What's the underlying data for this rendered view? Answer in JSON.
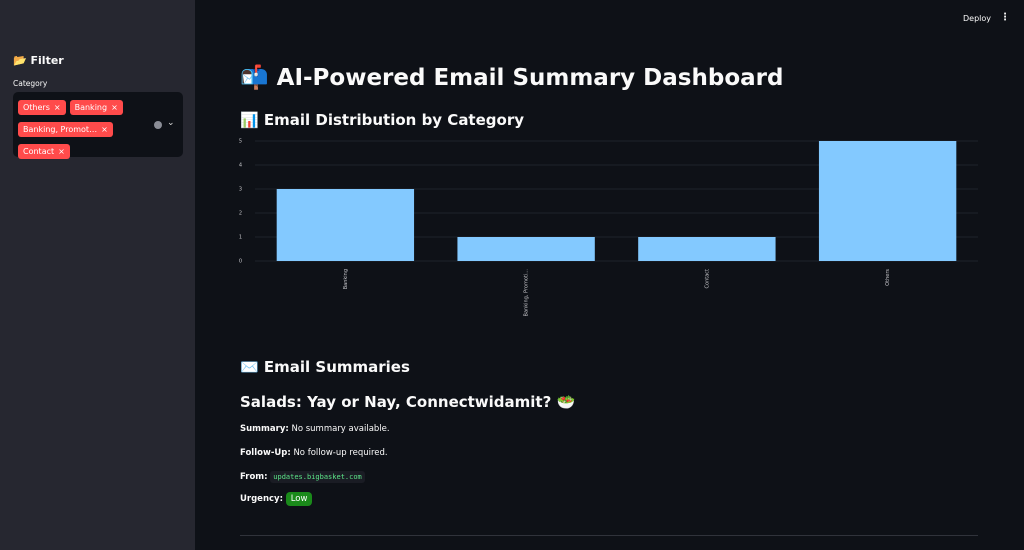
{
  "header": {
    "deploy": "Deploy"
  },
  "sidebar": {
    "title": "📂 Filter",
    "filter_label": "Category",
    "chips": [
      "Others",
      "Banking",
      "Banking, Promot…",
      "Contact"
    ]
  },
  "main": {
    "title": "📬 AI-Powered Email Summary Dashboard",
    "chart_heading": "📊 Email Distribution by Category",
    "summaries_heading": "✉️ Email Summaries"
  },
  "chart_data": {
    "type": "bar",
    "categories": [
      "Banking",
      "Banking, Promoti...",
      "Contact",
      "Others"
    ],
    "values": [
      3,
      1,
      1,
      5
    ],
    "color": "#83c9ff",
    "ylim": [
      0,
      5
    ],
    "yticks": [
      0,
      1,
      2,
      3,
      4,
      5
    ],
    "grid": true
  },
  "email": {
    "subject": "Salads: Yay or Nay, Connectwidamit? 🥗",
    "summary_label": "Summary:",
    "summary": "No summary available.",
    "followup_label": "Follow-Up:",
    "followup": "No follow-up required.",
    "from_label": "From:",
    "from": "updates.bigbasket.com",
    "urgency_label": "Urgency:",
    "urgency": "Low"
  }
}
